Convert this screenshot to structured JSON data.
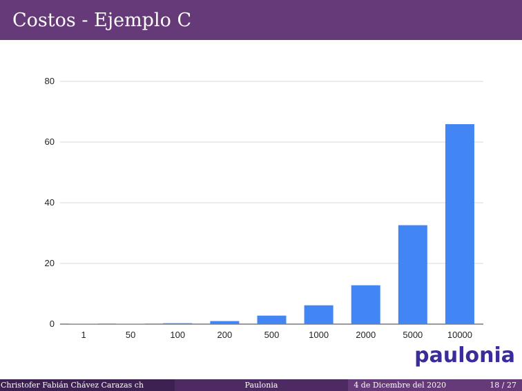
{
  "header": {
    "title": "Costos - Ejemplo C"
  },
  "chart_data": {
    "type": "bar",
    "title": "",
    "xlabel": "",
    "ylabel": "",
    "categories": [
      "1",
      "50",
      "100",
      "200",
      "500",
      "1000",
      "2000",
      "5000",
      "10000"
    ],
    "values": [
      0.05,
      0.1,
      0.3,
      1.0,
      2.8,
      6.2,
      12.8,
      32.6,
      65.9
    ],
    "ylim": [
      0,
      80
    ],
    "yticks": [
      0,
      20,
      40,
      60,
      80
    ],
    "grid": true,
    "legend": "none",
    "bar_color": "#4285f4"
  },
  "logo": {
    "text": "paulonia"
  },
  "footer": {
    "author": "Christofer Fabián Chávez Carazas  ch",
    "project": "Paulonia",
    "date": "4 de Dicembre del 2020",
    "page": "18 / 27"
  },
  "colors": {
    "header_bg": "#663979",
    "footer_left": "#3d2152",
    "footer_mid": "#4e2a62",
    "footer_right": "#663979",
    "logo": "#3a2d9a"
  }
}
